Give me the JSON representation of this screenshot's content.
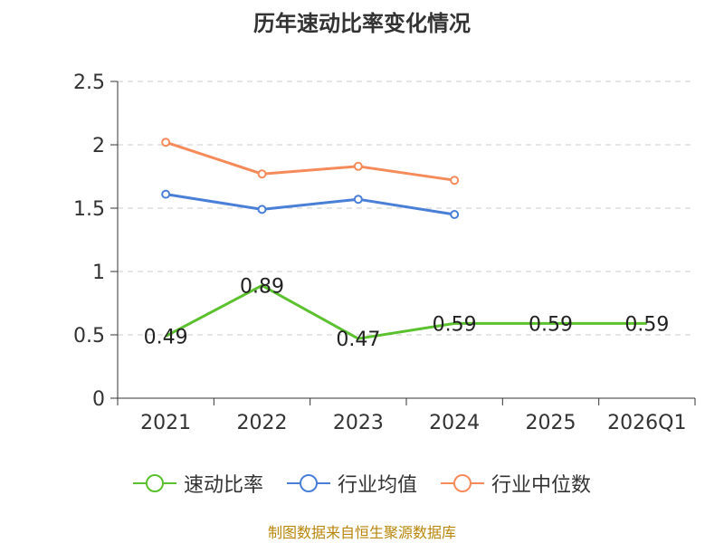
{
  "chart_data": {
    "type": "line",
    "title": "历年速动比率变化情况",
    "categories": [
      "2021",
      "2022",
      "2023",
      "2024",
      "2025",
      "2026Q1"
    ],
    "ylim": [
      0,
      2.5
    ],
    "yticks": [
      "0",
      "0.5",
      "1",
      "1.5",
      "2",
      "2.5"
    ],
    "ytick_values": [
      0,
      0.5,
      1,
      1.5,
      2,
      2.5
    ],
    "grid": true,
    "legend_position": "bottom-center",
    "series": [
      {
        "name": "速动比率",
        "color": "#5bc12f",
        "values": [
          0.49,
          0.89,
          0.47,
          0.59,
          0.59,
          0.59
        ],
        "labels": [
          "0.49",
          "0.89",
          "0.47",
          "0.59",
          "0.59",
          "0.59"
        ],
        "markers": false
      },
      {
        "name": "行业均值",
        "color": "#4a7fd8",
        "values": [
          1.61,
          1.49,
          1.57,
          1.45,
          null,
          null
        ],
        "markers": true
      },
      {
        "name": "行业中位数",
        "color": "#f58b5a",
        "values": [
          2.02,
          1.77,
          1.83,
          1.72,
          null,
          null
        ],
        "markers": true
      }
    ]
  },
  "source": "制图数据来自恒生聚源数据库"
}
